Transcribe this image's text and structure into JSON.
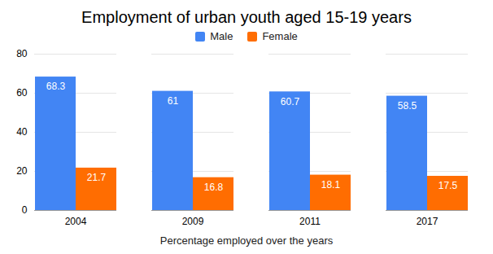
{
  "chart_data": {
    "type": "bar",
    "title": "Employment of urban youth aged 15-19 years",
    "x_label": "Percentage employed over the years",
    "categories": [
      "2004",
      "2009",
      "2011",
      "2017"
    ],
    "series": [
      {
        "name": "Male",
        "color": "#4285f4",
        "values": [
          68.3,
          61,
          60.7,
          58.5
        ]
      },
      {
        "name": "Female",
        "color": "#ff6d01",
        "values": [
          21.7,
          16.8,
          18.1,
          17.5
        ]
      }
    ],
    "ylim": [
      0,
      80
    ],
    "yticks": [
      0,
      20,
      40,
      60,
      80
    ],
    "grid": true,
    "legend": "top",
    "data_labels": true
  }
}
